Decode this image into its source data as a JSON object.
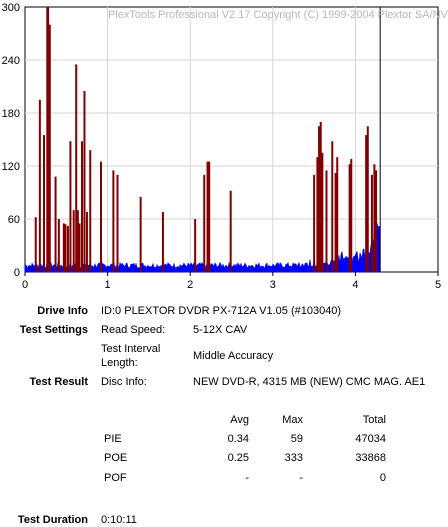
{
  "watermark": "PlexTools Professional V2.17 Copyright (C) 1999-2004 Plextor SA/NV",
  "chart_data": {
    "type": "bar",
    "xlabel": "",
    "ylabel": "",
    "xlim": [
      0,
      5
    ],
    "ylim": [
      0,
      300
    ],
    "x_ticks": [
      "0",
      "1",
      "2",
      "3",
      "4",
      "5"
    ],
    "y_ticks": [
      "0",
      "60",
      "120",
      "180",
      "240",
      "300"
    ],
    "grid": true,
    "end_marker_x": 4.3,
    "series": [
      {
        "name": "POE",
        "color": "#800000",
        "points": [
          [
            0.13,
            62
          ],
          [
            0.18,
            195
          ],
          [
            0.23,
            155
          ],
          [
            0.27,
            300
          ],
          [
            0.28,
            300
          ],
          [
            0.3,
            280
          ],
          [
            0.37,
            108
          ],
          [
            0.41,
            60
          ],
          [
            0.47,
            55
          ],
          [
            0.49,
            54
          ],
          [
            0.52,
            52
          ],
          [
            0.55,
            148
          ],
          [
            0.59,
            70
          ],
          [
            0.62,
            235
          ],
          [
            0.64,
            70
          ],
          [
            0.66,
            55
          ],
          [
            0.69,
            148
          ],
          [
            0.72,
            205
          ],
          [
            0.75,
            68
          ],
          [
            0.79,
            138
          ],
          [
            0.92,
            125
          ],
          [
            1.07,
            115
          ],
          [
            1.12,
            110
          ],
          [
            1.4,
            85
          ],
          [
            1.67,
            68
          ],
          [
            2.06,
            60
          ],
          [
            2.17,
            110
          ],
          [
            2.21,
            125
          ],
          [
            2.23,
            125
          ],
          [
            2.49,
            92
          ],
          [
            3.5,
            110
          ],
          [
            3.54,
            130
          ],
          [
            3.56,
            165
          ],
          [
            3.58,
            170
          ],
          [
            3.6,
            135
          ],
          [
            3.65,
            115
          ],
          [
            3.72,
            148
          ],
          [
            3.76,
            112
          ],
          [
            3.78,
            130
          ],
          [
            3.93,
            122
          ],
          [
            3.95,
            128
          ],
          [
            4.13,
            155
          ],
          [
            4.15,
            165
          ],
          [
            4.2,
            110
          ],
          [
            4.23,
            122
          ],
          [
            4.25,
            115
          ]
        ]
      },
      {
        "name": "PIE",
        "color": "#0000ff",
        "x_start": 0.0,
        "x_end": 4.3,
        "baseline": 8,
        "ramp_start": 3.3,
        "max": 59
      }
    ]
  },
  "info": {
    "drive_info_label": "Drive Info",
    "drive_info_value": "ID:0 PLEXTOR DVDR PX-712A V1.05 (#103040)",
    "test_settings_label": "Test Settings",
    "read_speed_label": "Read Speed:",
    "read_speed_value": "5-12X CAV",
    "test_interval_label_1": "Test Interval",
    "test_interval_label_2": "Length:",
    "test_interval_value": "Middle Accuracy",
    "test_result_label": "Test Result",
    "disc_info_label": "Disc Info:",
    "disc_info_value": "NEW DVD-R, 4315 MB (NEW) CMC MAG. AE1",
    "col_avg": "Avg",
    "col_max": "Max",
    "col_total": "Total",
    "rows": [
      {
        "name": "PIE",
        "avg": "0.34",
        "max": "59",
        "total": "47034"
      },
      {
        "name": "POE",
        "avg": "0.25",
        "max": "333",
        "total": "33868"
      },
      {
        "name": "POF",
        "avg": "-",
        "max": "-",
        "total": "0"
      }
    ],
    "test_duration_label": "Test Duration",
    "test_duration_value": "0:10:11"
  }
}
